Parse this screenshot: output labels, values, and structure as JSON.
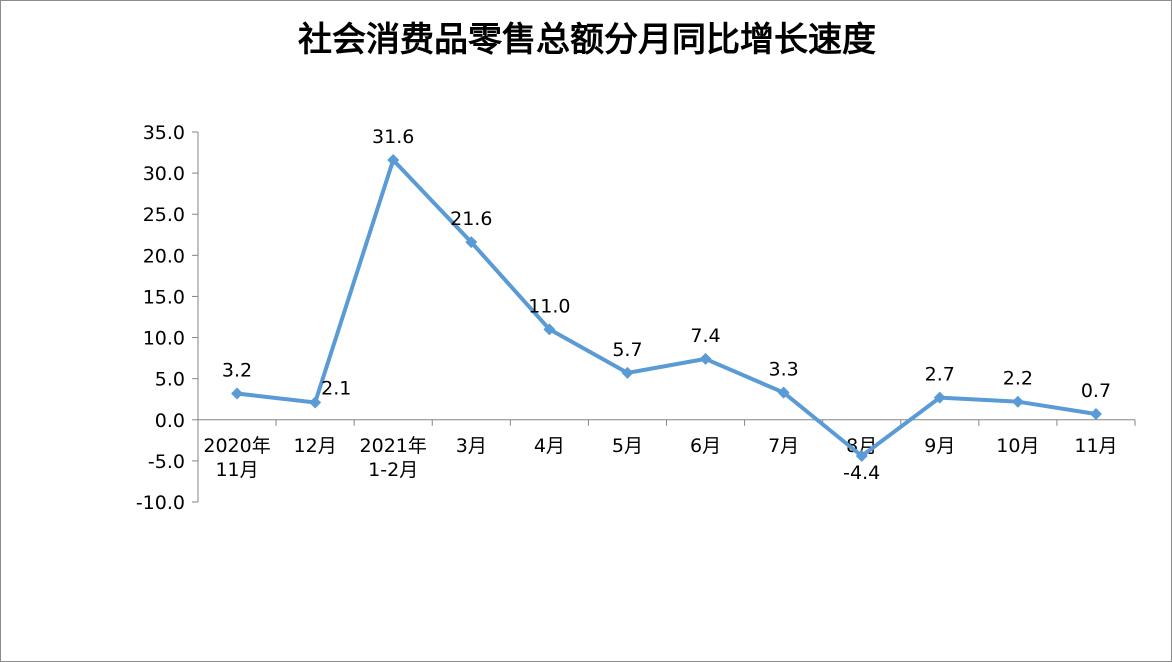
{
  "chart_data": {
    "type": "line",
    "title": "社会消费品零售总额分月同比增长速度",
    "xlabel": "",
    "ylabel": "",
    "ylim": [
      -10,
      35
    ],
    "ytick_step": 5,
    "ytick_labels": [
      "35.0",
      "30.0",
      "25.0",
      "20.0",
      "15.0",
      "10.0",
      "5.0",
      "0.0",
      "-5.0",
      "-10.0"
    ],
    "grid": false,
    "legend": "none",
    "line_color": "#5B9BD5",
    "categories": [
      [
        "2020年",
        "11月"
      ],
      [
        "12月"
      ],
      [
        "2021年",
        "1-2月"
      ],
      [
        "3月"
      ],
      [
        "4月"
      ],
      [
        "5月"
      ],
      [
        "6月"
      ],
      [
        "7月"
      ],
      [
        "8月"
      ],
      [
        "9月"
      ],
      [
        "10月"
      ],
      [
        "11月"
      ]
    ],
    "values": [
      3.2,
      2.1,
      31.6,
      21.6,
      11.0,
      5.7,
      7.4,
      3.3,
      -4.4,
      2.7,
      2.2,
      0.7
    ],
    "data_labels": [
      "3.2",
      "2.1",
      "31.6",
      "21.6",
      "11.0",
      "5.7",
      "7.4",
      "3.3",
      "-4.4",
      "2.7",
      "2.2",
      "0.7"
    ]
  }
}
